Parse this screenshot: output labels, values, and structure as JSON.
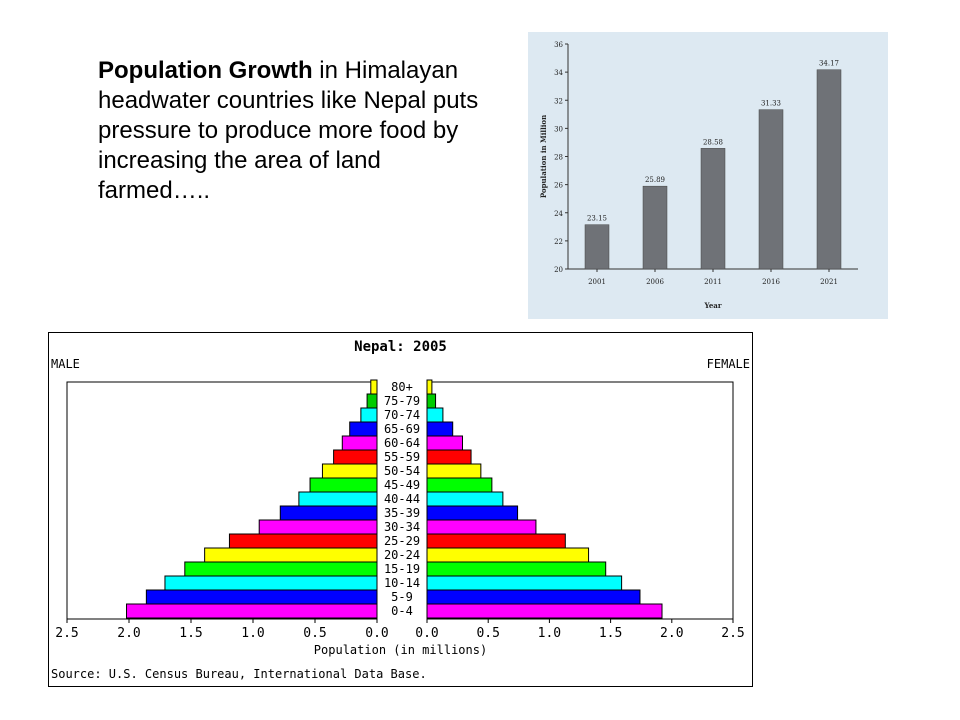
{
  "caption": {
    "bold": "Population Growth",
    "rest": " in Himalayan headwater countries like Nepal puts pressure to produce more food by increasing the area of land farmed….."
  },
  "chart_data": [
    {
      "type": "bar",
      "categories": [
        "2001",
        "2006",
        "2011",
        "2016",
        "2021"
      ],
      "values": [
        23.15,
        25.89,
        28.58,
        31.33,
        34.17
      ],
      "value_labels": [
        "23.15",
        "25.89",
        "28.58",
        "31.33",
        "34.17"
      ],
      "title": "",
      "xlabel": "Year",
      "ylabel": "Population in Million",
      "ylim": [
        20,
        36
      ],
      "yticks": [
        "20",
        "22",
        "24",
        "26",
        "28",
        "30",
        "32",
        "34",
        "36"
      ],
      "bar_color": "#6f7277",
      "background": "#dde9f2",
      "grid": false
    },
    {
      "type": "bar",
      "orientation": "horizontal-pyramid",
      "title": "Nepal: 2005",
      "left_label": "MALE",
      "right_label": "FEMALE",
      "xlabel": "Population (in millions)",
      "source": "Source: U.S. Census Bureau, International Data Base.",
      "xlim": [
        0,
        2.5
      ],
      "left_ticks": [
        "2.5",
        "2.0",
        "1.5",
        "1.0",
        "0.5",
        "0.0"
      ],
      "right_ticks": [
        "0.0",
        "0.5",
        "1.0",
        "1.5",
        "2.0",
        "2.5"
      ],
      "categories": [
        "80+",
        "75-79",
        "70-74",
        "65-69",
        "60-64",
        "55-59",
        "50-54",
        "45-49",
        "40-44",
        "35-39",
        "30-34",
        "25-29",
        "20-24",
        "15-19",
        "10-14",
        "5-9",
        "0-4"
      ],
      "series": [
        {
          "name": "MALE",
          "values": [
            0.05,
            0.08,
            0.13,
            0.22,
            0.28,
            0.35,
            0.44,
            0.54,
            0.63,
            0.78,
            0.95,
            1.19,
            1.39,
            1.55,
            1.71,
            1.86,
            2.02
          ]
        },
        {
          "name": "FEMALE",
          "values": [
            0.04,
            0.07,
            0.13,
            0.21,
            0.29,
            0.36,
            0.44,
            0.53,
            0.62,
            0.74,
            0.89,
            1.13,
            1.32,
            1.46,
            1.59,
            1.74,
            1.92
          ]
        }
      ],
      "colors": [
        "#ffff00",
        "#00cc00",
        "#00ffff",
        "#0000ff",
        "#ff00ff",
        "#ff0000",
        "#ffff00",
        "#00ff00",
        "#00ffff",
        "#0000ff",
        "#ff00ff",
        "#ff0000",
        "#ffff00",
        "#00ff00",
        "#00ffff",
        "#0000ff",
        "#ff00ff"
      ]
    }
  ]
}
